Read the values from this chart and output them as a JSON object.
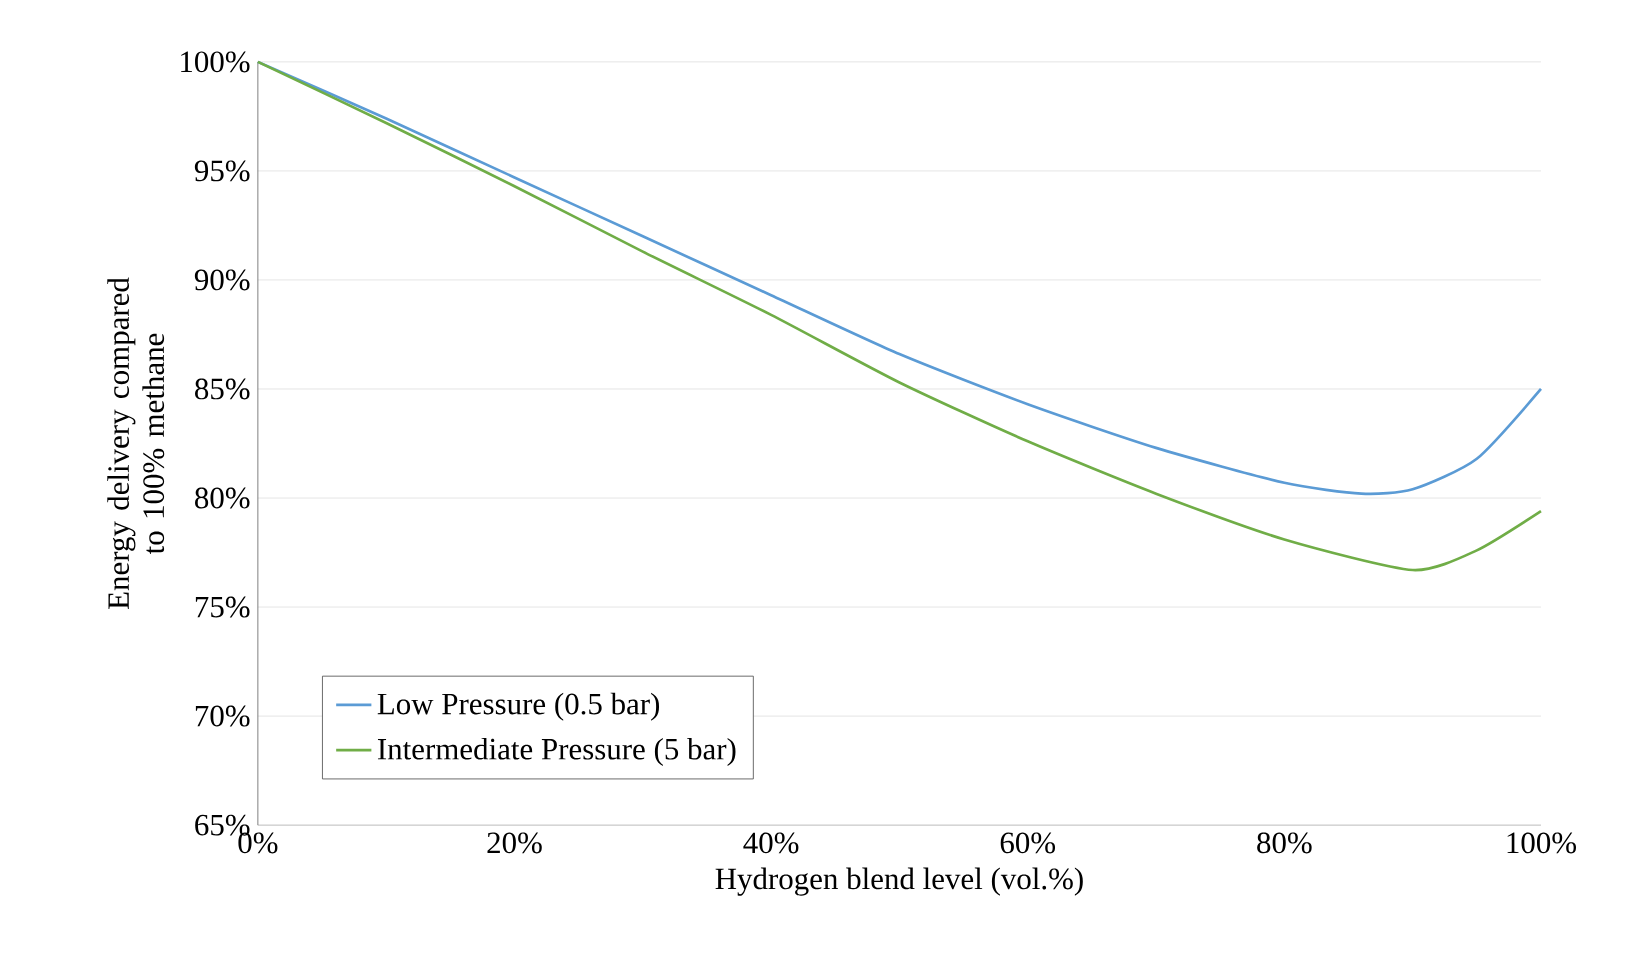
{
  "chart_data": {
    "type": "line",
    "xlabel": "Hydrogen blend level (vol.%)",
    "ylabel": "Energy delivery compared to 100% methane",
    "xlim": [
      0,
      100
    ],
    "ylim": [
      65,
      100
    ],
    "xticks": [
      {
        "value": 0,
        "label": "0%"
      },
      {
        "value": 20,
        "label": "20%"
      },
      {
        "value": 40,
        "label": "40%"
      },
      {
        "value": 60,
        "label": "60%"
      },
      {
        "value": 80,
        "label": "80%"
      },
      {
        "value": 100,
        "label": "100%"
      }
    ],
    "yticks": [
      {
        "value": 65,
        "label": "65%"
      },
      {
        "value": 70,
        "label": "70%"
      },
      {
        "value": 75,
        "label": "75%"
      },
      {
        "value": 80,
        "label": "80%"
      },
      {
        "value": 85,
        "label": "85%"
      },
      {
        "value": 90,
        "label": "90%"
      },
      {
        "value": 95,
        "label": "95%"
      },
      {
        "value": 100,
        "label": "100%"
      }
    ],
    "grid": "y",
    "legend": "bottom left",
    "marker": "none",
    "line_style": "solid",
    "series": [
      {
        "name": "Low Pressure (0.5 bar)",
        "color": "#5b9bd5",
        "x": [
          0,
          10,
          20,
          30,
          40,
          50,
          60,
          70,
          80,
          86,
          90,
          95,
          100
        ],
        "values": [
          100,
          97.4,
          94.7,
          92,
          89.3,
          86.6,
          84.3,
          82.3,
          80.7,
          80.2,
          80.4,
          81.8,
          85
        ]
      },
      {
        "name": "Intermediate Pressure (5 bar)",
        "color": "#70ad47",
        "x": [
          0,
          10,
          20,
          30,
          40,
          50,
          60,
          70,
          80,
          90,
          95,
          100
        ],
        "values": [
          100,
          97.2,
          94.3,
          91.3,
          88.4,
          85.3,
          82.6,
          80.2,
          78.1,
          76.7,
          77.6,
          79.4
        ]
      }
    ]
  }
}
